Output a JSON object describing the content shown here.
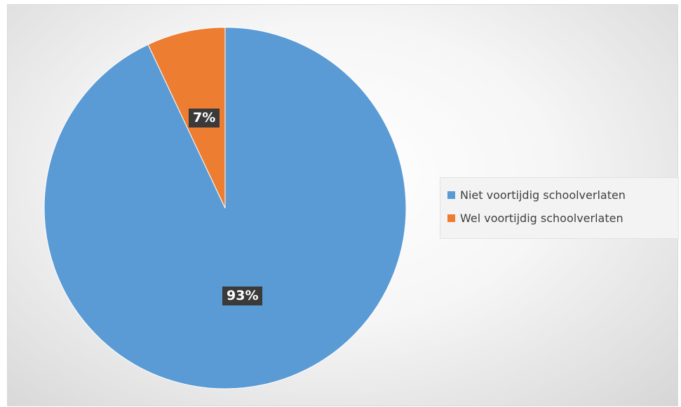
{
  "chart_data": {
    "type": "pie",
    "slices": [
      {
        "label": "Niet voortijdig schoolverlaten",
        "value": 93,
        "data_label": "93%",
        "color": "#5b9bd5"
      },
      {
        "label": "Wel voortijdig schoolverlaten",
        "value": 7,
        "data_label": "7%",
        "color": "#ed7d31"
      }
    ],
    "legend": {
      "placement": "right",
      "entries": [
        "Niet voortijdig schoolverlaten",
        "Wel voortijdig schoolverlaten"
      ]
    },
    "title": ""
  }
}
